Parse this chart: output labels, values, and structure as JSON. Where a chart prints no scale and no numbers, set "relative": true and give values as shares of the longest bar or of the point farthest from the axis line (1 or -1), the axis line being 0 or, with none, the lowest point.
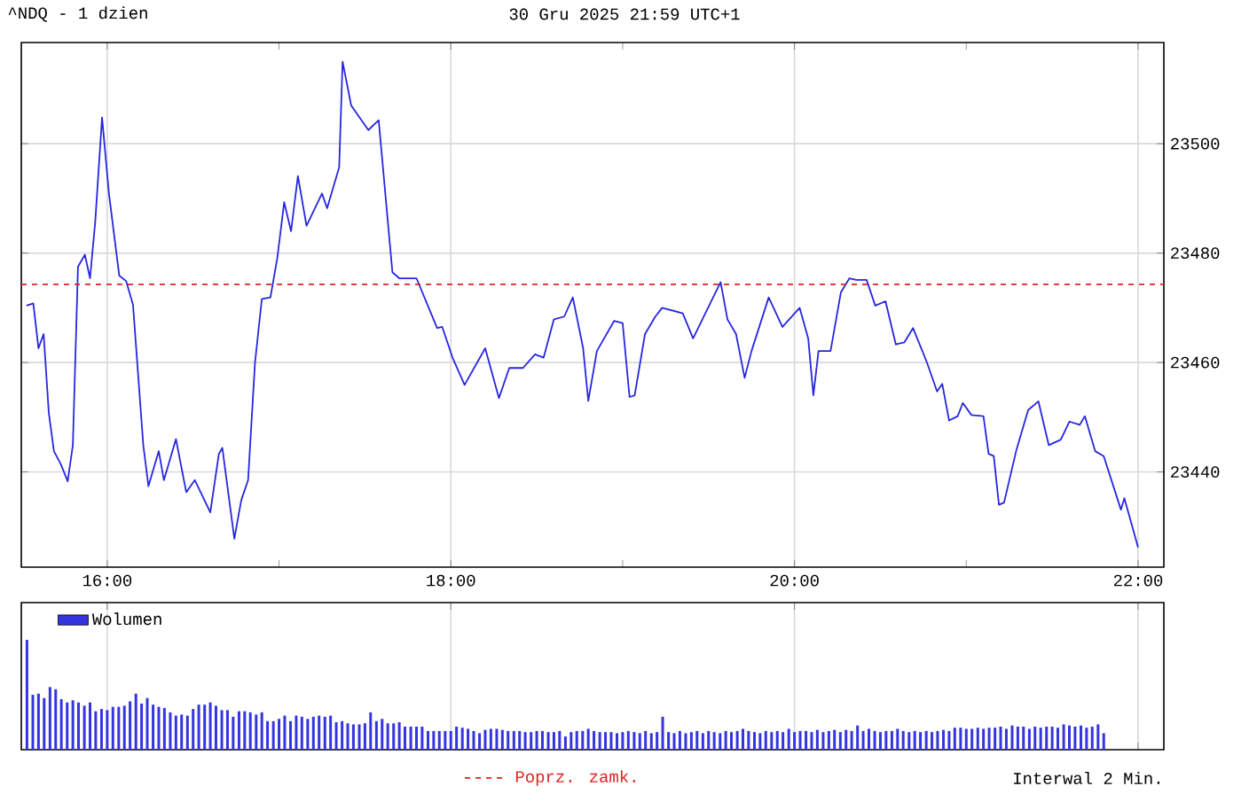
{
  "chart_data": [
    {
      "type": "line",
      "title": "^NDQ - 1 dzien",
      "subtitle": "30 Gru 2025 21:59 UTC+1",
      "x": [
        15.53,
        15.57,
        15.6,
        15.63,
        15.66,
        15.69,
        15.73,
        15.77,
        15.8,
        15.83,
        15.87,
        15.9,
        15.93,
        15.97,
        16.01,
        16.07,
        16.11,
        16.15,
        16.21,
        16.24,
        16.3,
        16.33,
        16.4,
        16.46,
        16.51,
        16.6,
        16.65,
        16.67,
        16.74,
        16.78,
        16.82,
        16.86,
        16.9,
        16.95,
        16.99,
        17.03,
        17.07,
        17.11,
        17.16,
        17.25,
        17.28,
        17.35,
        17.37,
        17.42,
        17.52,
        17.58,
        17.66,
        17.7,
        17.8,
        17.92,
        17.95,
        18.01,
        18.08,
        18.2,
        18.28,
        18.34,
        18.42,
        18.49,
        18.54,
        18.6,
        18.66,
        18.71,
        18.77,
        18.8,
        18.85,
        18.95,
        19.0,
        19.04,
        19.07,
        19.13,
        19.19,
        19.23,
        19.35,
        19.41,
        19.57,
        19.61,
        19.66,
        19.71,
        19.75,
        19.85,
        19.93,
        20.03,
        20.08,
        20.11,
        20.14,
        20.21,
        20.27,
        20.32,
        20.36,
        20.42,
        20.47,
        20.53,
        20.59,
        20.64,
        20.69,
        20.77,
        20.83,
        20.86,
        20.9,
        20.95,
        20.98,
        21.03,
        21.1,
        21.13,
        21.16,
        21.19,
        21.22,
        21.29,
        21.36,
        21.42,
        21.48,
        21.55,
        21.6,
        21.66,
        21.69,
        21.75,
        21.8,
        21.9,
        21.92,
        22.0
      ],
      "series": [
        {
          "color": "#2626e0",
          "values": [
            23470.4,
            23470.8,
            23462.6,
            23465.2,
            23450.8,
            23443.8,
            23441.4,
            23438.3,
            23444.9,
            23477.5,
            23479.7,
            23475.4,
            23485.6,
            23504.8,
            23490.9,
            23475.9,
            23474.9,
            23470.6,
            23444.9,
            23437.4,
            23443.8,
            23438.5,
            23446.0,
            23436.3,
            23438.5,
            23432.6,
            23443.3,
            23444.4,
            23427.8,
            23434.8,
            23438.5,
            23459.9,
            23471.6,
            23471.9,
            23479.1,
            23489.3,
            23484.0,
            23494.1,
            23485.0,
            23490.9,
            23488.2,
            23495.7,
            23515.0,
            23507.0,
            23502.5,
            23504.3,
            23476.5,
            23475.4,
            23475.4,
            23466.3,
            23466.5,
            23460.9,
            23455.9,
            23462.6,
            23453.5,
            23459.0,
            23459.0,
            23461.5,
            23460.9,
            23467.9,
            23468.4,
            23471.9,
            23462.6,
            23453.0,
            23462.1,
            23467.6,
            23467.2,
            23453.7,
            23454.0,
            23465.2,
            23468.4,
            23470.0,
            23469.0,
            23464.4,
            23474.7,
            23467.9,
            23465.2,
            23457.2,
            23462.1,
            23471.9,
            23466.5,
            23470.0,
            23464.4,
            23454.0,
            23462.1,
            23462.1,
            23472.8,
            23475.4,
            23475.1,
            23475.1,
            23470.4,
            23471.2,
            23463.3,
            23463.7,
            23466.3,
            23460.1,
            23454.7,
            23456.1,
            23449.4,
            23450.2,
            23452.6,
            23450.4,
            23450.2,
            23443.3,
            23442.9,
            23434.0,
            23434.4,
            23443.8,
            23451.3,
            23452.9,
            23444.9,
            23445.9,
            23449.2,
            23448.6,
            23450.2,
            23443.8,
            23442.9,
            23433.1,
            23435.2,
            23426.2
          ]
        }
      ],
      "xlim": [
        15.5,
        22.15
      ],
      "ylim": [
        23422.6,
        23518.5
      ],
      "xticks": [
        {
          "value": 16,
          "label": "16:00"
        },
        {
          "value": 17,
          "label": null
        },
        {
          "value": 18,
          "label": "18:00"
        },
        {
          "value": 19,
          "label": null
        },
        {
          "value": 20,
          "label": "20:00"
        },
        {
          "value": 21,
          "label": null
        },
        {
          "value": 22,
          "label": "22:00"
        }
      ],
      "yticks": [
        23440,
        23460,
        23480,
        23500
      ],
      "grid": true,
      "ref_lines": [
        {
          "axis": "y",
          "value": 23474.3,
          "label": "Poprz. zamk.",
          "color": "#e02020",
          "line_style": "dashed"
        }
      ],
      "annotations": [
        "Interwal 2 Min."
      ]
    },
    {
      "type": "bar",
      "relative": true,
      "x": [
        15.533,
        15.567,
        15.6,
        15.633,
        15.667,
        15.7,
        15.733,
        15.767,
        15.8,
        15.833,
        15.867,
        15.9,
        15.933,
        15.967,
        16.0,
        16.033,
        16.067,
        16.1,
        16.133,
        16.167,
        16.2,
        16.233,
        16.267,
        16.3,
        16.333,
        16.367,
        16.4,
        16.433,
        16.467,
        16.5,
        16.533,
        16.567,
        16.6,
        16.633,
        16.667,
        16.7,
        16.733,
        16.767,
        16.8,
        16.833,
        16.867,
        16.9,
        16.933,
        16.967,
        17.0,
        17.033,
        17.067,
        17.1,
        17.133,
        17.167,
        17.2,
        17.233,
        17.267,
        17.3,
        17.333,
        17.367,
        17.4,
        17.433,
        17.467,
        17.5,
        17.533,
        17.567,
        17.6,
        17.633,
        17.667,
        17.7,
        17.733,
        17.767,
        17.8,
        17.833,
        17.867,
        17.9,
        17.933,
        17.967,
        18.0,
        18.033,
        18.067,
        18.1,
        18.133,
        18.167,
        18.2,
        18.233,
        18.267,
        18.3,
        18.333,
        18.367,
        18.4,
        18.433,
        18.467,
        18.5,
        18.533,
        18.567,
        18.6,
        18.633,
        18.667,
        18.7,
        18.733,
        18.767,
        18.8,
        18.833,
        18.867,
        18.9,
        18.933,
        18.967,
        19.0,
        19.033,
        19.067,
        19.1,
        19.133,
        19.167,
        19.2,
        19.233,
        19.267,
        19.3,
        19.333,
        19.367,
        19.4,
        19.433,
        19.467,
        19.5,
        19.533,
        19.567,
        19.6,
        19.633,
        19.667,
        19.7,
        19.733,
        19.767,
        19.8,
        19.833,
        19.867,
        19.9,
        19.933,
        19.967,
        20.0,
        20.033,
        20.067,
        20.1,
        20.133,
        20.167,
        20.2,
        20.233,
        20.267,
        20.3,
        20.333,
        20.367,
        20.4,
        20.433,
        20.467,
        20.5,
        20.533,
        20.567,
        20.6,
        20.633,
        20.667,
        20.7,
        20.733,
        20.767,
        20.8,
        20.833,
        20.867,
        20.9,
        20.933,
        20.967,
        21.0,
        21.033,
        21.067,
        21.1,
        21.133,
        21.167,
        21.2,
        21.233,
        21.267,
        21.3,
        21.333,
        21.367,
        21.4,
        21.433,
        21.467,
        21.5,
        21.533,
        21.567,
        21.6,
        21.633,
        21.667,
        21.7,
        21.733,
        21.767,
        21.8
      ],
      "series": [
        {
          "name": "Wolumen",
          "color": "#3434e0",
          "values": [
            1.0,
            0.5,
            0.51,
            0.47,
            0.57,
            0.55,
            0.46,
            0.43,
            0.45,
            0.43,
            0.4,
            0.43,
            0.35,
            0.37,
            0.36,
            0.39,
            0.39,
            0.4,
            0.44,
            0.51,
            0.42,
            0.47,
            0.41,
            0.39,
            0.38,
            0.34,
            0.31,
            0.32,
            0.31,
            0.37,
            0.41,
            0.41,
            0.43,
            0.4,
            0.36,
            0.36,
            0.3,
            0.35,
            0.35,
            0.34,
            0.32,
            0.34,
            0.26,
            0.26,
            0.28,
            0.31,
            0.26,
            0.31,
            0.3,
            0.28,
            0.3,
            0.31,
            0.3,
            0.31,
            0.25,
            0.26,
            0.24,
            0.23,
            0.23,
            0.24,
            0.34,
            0.26,
            0.28,
            0.24,
            0.24,
            0.25,
            0.21,
            0.21,
            0.21,
            0.21,
            0.17,
            0.17,
            0.17,
            0.17,
            0.17,
            0.21,
            0.2,
            0.19,
            0.17,
            0.15,
            0.18,
            0.19,
            0.19,
            0.18,
            0.17,
            0.17,
            0.17,
            0.16,
            0.16,
            0.17,
            0.17,
            0.16,
            0.16,
            0.17,
            0.12,
            0.16,
            0.17,
            0.17,
            0.19,
            0.17,
            0.16,
            0.16,
            0.16,
            0.15,
            0.16,
            0.17,
            0.16,
            0.15,
            0.17,
            0.15,
            0.16,
            0.3,
            0.16,
            0.15,
            0.17,
            0.15,
            0.16,
            0.17,
            0.15,
            0.17,
            0.16,
            0.15,
            0.17,
            0.16,
            0.17,
            0.19,
            0.17,
            0.16,
            0.15,
            0.17,
            0.16,
            0.17,
            0.16,
            0.19,
            0.16,
            0.17,
            0.17,
            0.16,
            0.18,
            0.16,
            0.17,
            0.18,
            0.16,
            0.18,
            0.17,
            0.22,
            0.17,
            0.19,
            0.17,
            0.16,
            0.17,
            0.17,
            0.19,
            0.17,
            0.16,
            0.17,
            0.16,
            0.17,
            0.16,
            0.17,
            0.18,
            0.17,
            0.2,
            0.2,
            0.19,
            0.19,
            0.2,
            0.19,
            0.2,
            0.2,
            0.21,
            0.19,
            0.22,
            0.21,
            0.21,
            0.19,
            0.21,
            0.2,
            0.21,
            0.21,
            0.2,
            0.23,
            0.22,
            0.21,
            0.22,
            0.2,
            0.21,
            0.23,
            0.15
          ]
        }
      ],
      "xlim": [
        15.5,
        22.15
      ],
      "xticks": [
        {
          "value": 16,
          "label": null
        },
        {
          "value": 18,
          "label": null
        },
        {
          "value": 20,
          "label": null
        },
        {
          "value": 22,
          "label": null
        }
      ],
      "tick_labels": false,
      "grid": "x",
      "legend": "top left"
    }
  ]
}
